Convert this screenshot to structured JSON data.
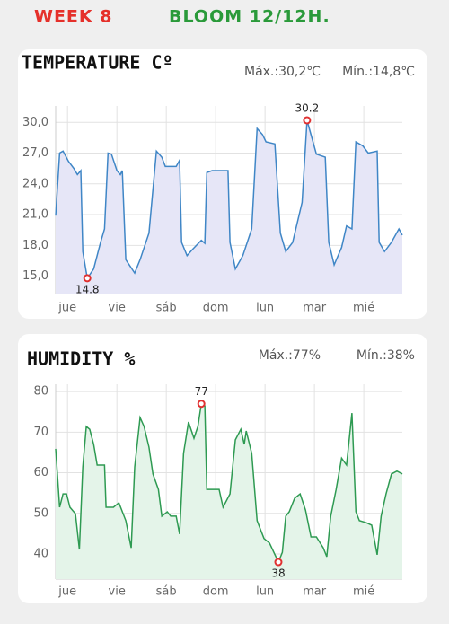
{
  "header": {
    "week": "WEEK 8",
    "stage": "BLOOM 12/12H."
  },
  "chart_data": [
    {
      "type": "line",
      "title": "TEMPERATURE Cº",
      "stats": [
        "Máx.:30,2℃",
        "Mín.:14,8℃"
      ],
      "color": "#3f86c6",
      "fill_color": "#e6e6f7",
      "grid": true,
      "xlim": [
        -0.24,
        6.78
      ],
      "xticks": [
        {
          "value": 0,
          "label": "jue"
        },
        {
          "value": 1,
          "label": "vie"
        },
        {
          "value": 2,
          "label": "sáb"
        },
        {
          "value": 3,
          "label": "dom"
        },
        {
          "value": 4,
          "label": "lun"
        },
        {
          "value": 5,
          "label": "mar"
        },
        {
          "value": 6,
          "label": "mié"
        }
      ],
      "ylim": [
        13.3,
        31.6
      ],
      "yticks": [
        {
          "value": 15,
          "label": "15,0"
        },
        {
          "value": 18,
          "label": "18,0"
        },
        {
          "value": 21,
          "label": "21,0"
        },
        {
          "value": 24,
          "label": "24,0"
        },
        {
          "value": 27,
          "label": "27,0"
        },
        {
          "value": 30,
          "label": "30,0"
        }
      ],
      "x": [
        -0.24,
        -0.16,
        -0.09,
        0.02,
        0.13,
        0.2,
        0.27,
        0.31,
        0.4,
        0.53,
        0.67,
        0.75,
        0.82,
        0.89,
        1.0,
        1.07,
        1.11,
        1.18,
        1.36,
        1.47,
        1.65,
        1.8,
        1.91,
        1.98,
        2.2,
        2.27,
        2.31,
        2.42,
        2.53,
        2.71,
        2.78,
        2.82,
        2.93,
        3.25,
        3.29,
        3.4,
        3.55,
        3.73,
        3.84,
        3.95,
        4.02,
        4.2,
        4.31,
        4.42,
        4.56,
        4.75,
        4.85,
        4.93,
        5.04,
        5.22,
        5.29,
        5.4,
        5.55,
        5.65,
        5.76,
        5.84,
        5.98,
        6.09,
        6.27,
        6.31,
        6.42,
        6.56,
        6.71,
        6.78
      ],
      "values": [
        20.9,
        27.0,
        27.2,
        26.2,
        25.5,
        24.9,
        25.3,
        17.4,
        14.8,
        15.7,
        18.3,
        19.6,
        27.0,
        26.9,
        25.3,
        24.9,
        25.3,
        16.6,
        15.3,
        16.6,
        19.2,
        27.2,
        26.6,
        25.7,
        25.7,
        26.3,
        18.3,
        17.0,
        17.6,
        18.5,
        18.2,
        25.1,
        25.3,
        25.3,
        18.3,
        15.7,
        17.0,
        19.6,
        29.4,
        28.8,
        28.1,
        27.9,
        19.2,
        17.4,
        18.3,
        22.2,
        30.2,
        28.8,
        26.9,
        26.6,
        18.3,
        16.1,
        17.8,
        19.9,
        19.6,
        28.1,
        27.7,
        27.0,
        27.2,
        18.3,
        17.4,
        18.3,
        19.6,
        19.0
      ],
      "annotations": [
        {
          "x": 4.85,
          "y": 30.2,
          "position": "above"
        },
        {
          "x": 0.4,
          "y": 14.8,
          "position": "below"
        }
      ],
      "marker_color": "#e03030"
    },
    {
      "type": "line",
      "title": "HUMIDITY %",
      "stats": [
        "Máx.:77%",
        "Mín.:38%"
      ],
      "color": "#2e9a52",
      "fill_color": "#e4f4e9",
      "grid": true,
      "xlim": [
        -0.24,
        6.78
      ],
      "xticks": [
        {
          "value": 0,
          "label": "jue"
        },
        {
          "value": 1,
          "label": "vie"
        },
        {
          "value": 2,
          "label": "sáb"
        },
        {
          "value": 3,
          "label": "dom"
        },
        {
          "value": 4,
          "label": "lun"
        },
        {
          "value": 5,
          "label": "mar"
        },
        {
          "value": 6,
          "label": "mié"
        }
      ],
      "ylim": [
        33.8,
        81.8
      ],
      "yticks": [
        40,
        50,
        60,
        70,
        80
      ],
      "x": [
        -0.24,
        -0.16,
        -0.09,
        -0.02,
        0.05,
        0.16,
        0.24,
        0.31,
        0.38,
        0.45,
        0.53,
        0.6,
        0.75,
        0.78,
        0.93,
        1.04,
        1.18,
        1.29,
        1.36,
        1.47,
        1.55,
        1.65,
        1.73,
        1.84,
        1.91,
        2.02,
        2.09,
        2.2,
        2.27,
        2.35,
        2.45,
        2.56,
        2.64,
        2.71,
        2.78,
        2.82,
        2.93,
        3.07,
        3.15,
        3.29,
        3.4,
        3.51,
        3.58,
        3.62,
        3.73,
        3.84,
        3.98,
        4.09,
        4.27,
        4.35,
        4.42,
        4.49,
        4.6,
        4.71,
        4.82,
        4.93,
        5.04,
        5.18,
        5.25,
        5.33,
        5.44,
        5.55,
        5.65,
        5.76,
        5.84,
        5.91,
        6.05,
        6.16,
        6.27,
        6.35,
        6.45,
        6.56,
        6.67,
        6.78
      ],
      "values": [
        65.9,
        51.5,
        54.8,
        54.8,
        51.5,
        49.9,
        41.1,
        61.4,
        71.4,
        70.7,
        67.0,
        61.9,
        61.9,
        51.5,
        51.5,
        52.6,
        48.2,
        41.5,
        61.4,
        73.6,
        71.4,
        66.3,
        59.7,
        55.9,
        49.3,
        50.4,
        49.3,
        49.3,
        44.9,
        64.8,
        72.5,
        68.5,
        71.4,
        77,
        76.5,
        55.9,
        55.9,
        55.9,
        51.5,
        54.8,
        68.1,
        70.7,
        67.0,
        70.3,
        64.8,
        48.2,
        43.8,
        42.7,
        38,
        40.4,
        49.3,
        50.4,
        53.7,
        54.8,
        50.8,
        44.2,
        44.2,
        41.5,
        39.3,
        49.3,
        55.9,
        63.6,
        61.9,
        74.7,
        50.4,
        48.2,
        47.7,
        47.1,
        39.8,
        49.3,
        54.8,
        59.7,
        60.4,
        59.7
      ],
      "annotations": [
        {
          "x": 2.71,
          "y": 77,
          "position": "above"
        },
        {
          "x": 4.27,
          "y": 38,
          "position": "below"
        }
      ],
      "marker_color": "#e03030"
    }
  ]
}
